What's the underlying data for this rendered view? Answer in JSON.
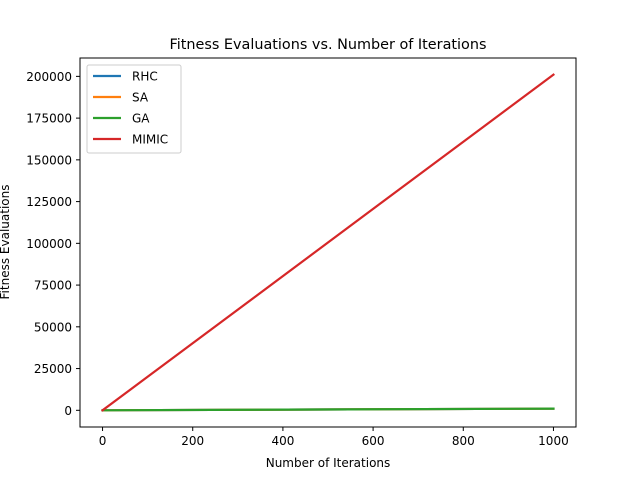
{
  "chart_data": {
    "type": "line",
    "title": "Fitness Evaluations vs. Number of Iterations",
    "xlabel": "Number of Iterations",
    "ylabel": "Fitness Evaluations",
    "xlim": [
      -50,
      1050
    ],
    "ylim": [
      -10000,
      211000
    ],
    "xticks": [
      0,
      200,
      400,
      600,
      800,
      1000
    ],
    "yticks": [
      0,
      25000,
      50000,
      75000,
      100000,
      125000,
      150000,
      175000,
      200000
    ],
    "grid": false,
    "legend_position": "upper-left",
    "series": [
      {
        "name": "RHC",
        "color": "#1f77b4",
        "x": [
          0,
          1000
        ],
        "y": [
          0,
          1000
        ]
      },
      {
        "name": "SA",
        "color": "#ff7f0e",
        "x": [
          0,
          1000
        ],
        "y": [
          0,
          1000
        ]
      },
      {
        "name": "GA",
        "color": "#2ca02c",
        "x": [
          0,
          1000
        ],
        "y": [
          0,
          1000
        ]
      },
      {
        "name": "MIMIC",
        "color": "#d62728",
        "x": [
          0,
          1000
        ],
        "y": [
          0,
          201000
        ]
      }
    ]
  }
}
